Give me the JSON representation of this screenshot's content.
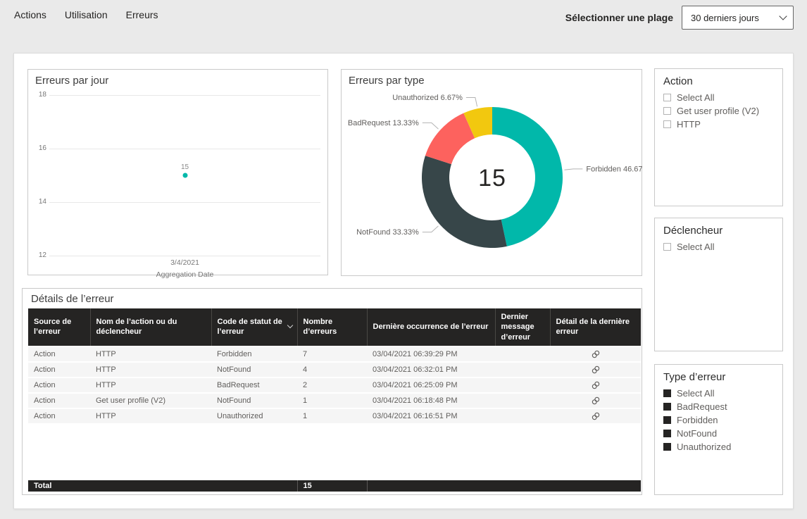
{
  "page": {
    "tabs": [
      {
        "label": "Actions"
      },
      {
        "label": "Utilisation"
      },
      {
        "label": "Erreurs"
      }
    ],
    "range_selector": {
      "label": "Sélectionner une plage",
      "value": "30 derniers jours"
    }
  },
  "chart_data": [
    {
      "id": "errors-by-day",
      "type": "scatter",
      "title": "Erreurs par jour",
      "xlabel": "Aggregation Date",
      "ylabel": "",
      "x": [
        "3/4/2021"
      ],
      "series": [
        {
          "name": "Erreurs",
          "values": [
            15
          ]
        }
      ],
      "point_labels": [
        "15"
      ],
      "ylim": [
        12,
        18
      ],
      "yticks": [
        18,
        16,
        14,
        12
      ],
      "grid": true,
      "legend": false,
      "point_color": "#01B8AA"
    },
    {
      "id": "errors-by-type",
      "type": "pie",
      "title": "Erreurs par type",
      "donut": true,
      "center_label": "15",
      "categories": [
        "Forbidden",
        "NotFound",
        "BadRequest",
        "Unauthorized"
      ],
      "values": [
        7,
        5,
        2,
        1
      ],
      "labels": [
        "Forbidden 46.67%",
        "NotFound 33.33%",
        "BadRequest 13.33%",
        "Unauthorized 6.67%"
      ],
      "colors": [
        "#01B8AA",
        "#374649",
        "#FD625E",
        "#F2C80F"
      ],
      "start_angle_deg": 0,
      "direction": "clockwise",
      "legend": false
    }
  ],
  "filters": [
    {
      "id": "action",
      "title": "Action",
      "items": [
        {
          "label": "Select All",
          "checked": false
        },
        {
          "label": "Get user profile (V2)",
          "checked": false
        },
        {
          "label": "HTTP",
          "checked": false
        }
      ]
    },
    {
      "id": "trigger",
      "title": "Déclencheur",
      "items": [
        {
          "label": "Select All",
          "checked": false
        }
      ]
    },
    {
      "id": "error-type",
      "title": "Type d’erreur",
      "items": [
        {
          "label": "Select All",
          "checked": true
        },
        {
          "label": "BadRequest",
          "checked": true
        },
        {
          "label": "Forbidden",
          "checked": true
        },
        {
          "label": "NotFound",
          "checked": true
        },
        {
          "label": "Unauthorized",
          "checked": true
        }
      ]
    }
  ],
  "table": {
    "title": "Détails de l’erreur",
    "columns": [
      "Source de l’erreur",
      "Nom de l’action ou du déclencheur",
      "Code de statut de l’erreur",
      "Nombre d’erreurs",
      "Dernière occurrence de l’erreur",
      "Dernier message d’erreur",
      "Détail de la dernière erreur"
    ],
    "sort_column": "Code de statut de l’erreur",
    "rows": [
      {
        "source": "Action",
        "name": "HTTP",
        "code": "Forbidden",
        "count": "7",
        "last_occurrence": "03/04/2021 06:39:29 PM",
        "last_message": "",
        "detail_icon": "link-icon"
      },
      {
        "source": "Action",
        "name": "HTTP",
        "code": "NotFound",
        "count": "4",
        "last_occurrence": "03/04/2021 06:32:01 PM",
        "last_message": "",
        "detail_icon": "link-icon"
      },
      {
        "source": "Action",
        "name": "HTTP",
        "code": "BadRequest",
        "count": "2",
        "last_occurrence": "03/04/2021 06:25:09 PM",
        "last_message": "",
        "detail_icon": "link-icon"
      },
      {
        "source": "Action",
        "name": "Get user profile (V2)",
        "code": "NotFound",
        "count": "1",
        "last_occurrence": "03/04/2021 06:18:48 PM",
        "last_message": "",
        "detail_icon": "link-icon"
      },
      {
        "source": "Action",
        "name": "HTTP",
        "code": "Unauthorized",
        "count": "1",
        "last_occurrence": "03/04/2021 06:16:51 PM",
        "last_message": "",
        "detail_icon": "link-icon"
      }
    ],
    "total": {
      "label": "Total",
      "count": "15"
    }
  }
}
